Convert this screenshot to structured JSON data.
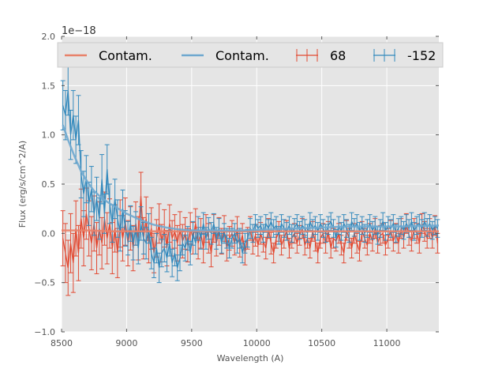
{
  "chart_data": {
    "type": "line",
    "title": "",
    "xlabel": "Wavelength (A)",
    "ylabel": "Flux (erg/s/cm^2/A)",
    "offset_label": "1e−18",
    "xlim": [
      8500,
      11400
    ],
    "ylim": [
      -1.0,
      2.0
    ],
    "xticks": [
      8500,
      9000,
      9500,
      10000,
      10500,
      11000
    ],
    "yticks": [
      -1.0,
      -0.5,
      0.0,
      0.5,
      1.0,
      1.5,
      2.0
    ],
    "ytick_labels": [
      "−1.0",
      "−0.5",
      "0.0",
      "0.5",
      "1.0",
      "1.5",
      "2.0"
    ],
    "grid": true,
    "legend": {
      "placement": "top",
      "entries": [
        {
          "label": "Contam.",
          "kind": "line",
          "color": "#e8826a"
        },
        {
          "label": "Contam.",
          "kind": "line",
          "color": "#6fa8cf"
        },
        {
          "label": "68",
          "kind": "errorbar",
          "color": "#e24a33"
        },
        {
          "label": "-152",
          "kind": "errorbar",
          "color": "#348abd"
        }
      ]
    },
    "series": [
      {
        "name": "Contam.",
        "kind": "line",
        "color": "#e8826a",
        "x": [
          8500,
          8700,
          8900,
          9100,
          9300,
          9500,
          9700,
          9900,
          10100,
          10300,
          10500,
          10700,
          10900,
          11100,
          11400
        ],
        "y": [
          0.03,
          0.03,
          0.02,
          0.02,
          0.02,
          0.02,
          0.02,
          0.02,
          0.02,
          0.02,
          0.02,
          0.02,
          0.02,
          0.02,
          0.02
        ]
      },
      {
        "name": "Contam.",
        "kind": "line",
        "color": "#6fa8cf",
        "x": [
          8510,
          8550,
          8600,
          8650,
          8700,
          8750,
          8800,
          8850,
          8900,
          8950,
          9000,
          9100,
          9200,
          9300,
          9400,
          9500,
          9700,
          9900,
          10100,
          10300,
          10500,
          10700,
          10900,
          11100,
          11400
        ],
        "y": [
          1.1,
          0.95,
          0.78,
          0.63,
          0.52,
          0.43,
          0.37,
          0.32,
          0.28,
          0.24,
          0.2,
          0.14,
          0.09,
          0.06,
          0.04,
          0.03,
          0.03,
          0.03,
          0.04,
          0.05,
          0.06,
          0.07,
          0.07,
          0.07,
          0.08
        ]
      },
      {
        "name": "68",
        "kind": "errorbar",
        "color": "#e24a33",
        "x": [
          8510,
          8530,
          8550,
          8570,
          8590,
          8610,
          8630,
          8650,
          8670,
          8690,
          8710,
          8730,
          8750,
          8770,
          8790,
          8810,
          8830,
          8850,
          8870,
          8890,
          8910,
          8930,
          8950,
          8970,
          8990,
          9010,
          9030,
          9050,
          9070,
          9090,
          9110,
          9130,
          9150,
          9170,
          9190,
          9210,
          9230,
          9250,
          9270,
          9290,
          9310,
          9330,
          9350,
          9370,
          9390,
          9410,
          9430,
          9450,
          9470,
          9490,
          9510,
          9530,
          9550,
          9570,
          9590,
          9610,
          9630,
          9650,
          9670,
          9690,
          9710,
          9730,
          9750,
          9770,
          9790,
          9810,
          9830,
          9850,
          9870,
          9890,
          9910,
          9930,
          9950,
          9970,
          9990,
          10010,
          10030,
          10050,
          10070,
          10090,
          10110,
          10130,
          10150,
          10170,
          10190,
          10210,
          10230,
          10250,
          10270,
          10290,
          10310,
          10330,
          10350,
          10370,
          10390,
          10410,
          10430,
          10450,
          10470,
          10490,
          10510,
          10530,
          10550,
          10570,
          10590,
          10610,
          10630,
          10650,
          10670,
          10690,
          10710,
          10730,
          10750,
          10770,
          10790,
          10810,
          10830,
          10850,
          10870,
          10890,
          10910,
          10930,
          10950,
          10970,
          10990,
          11010,
          11030,
          11050,
          11070,
          11090,
          11110,
          11130,
          11150,
          11170,
          11190,
          11210,
          11230,
          11250,
          11270,
          11290,
          11310,
          11330,
          11350,
          11370,
          11390
        ],
        "y": [
          -0.05,
          -0.2,
          -0.35,
          -0.1,
          -0.3,
          0.05,
          -0.2,
          0.15,
          -0.05,
          0.2,
          0.05,
          -0.1,
          0.1,
          -0.15,
          0.05,
          -0.1,
          0.15,
          -0.05,
          0.1,
          -0.15,
          0.05,
          -0.2,
          0.1,
          -0.05,
          0.12,
          -0.1,
          0.05,
          -0.15,
          0.1,
          -0.05,
          0.38,
          -0.05,
          0.15,
          -0.1,
          0.05,
          -0.2,
          -0.05,
          0.1,
          -0.1,
          0.05,
          -0.15,
          0.1,
          -0.05,
          0.02,
          -0.1,
          0.05,
          -0.08,
          0.0,
          -0.12,
          0.05,
          -0.05,
          0.1,
          -0.1,
          0.0,
          -0.15,
          0.05,
          -0.05,
          -0.2,
          0.05,
          -0.1,
          0.02,
          -0.08,
          0.05,
          -0.15,
          -0.05,
          0.0,
          -0.1,
          0.05,
          -0.12,
          -0.02,
          -0.2,
          -0.05,
          0.05,
          -0.1,
          -0.02,
          -0.12,
          0.0,
          -0.08,
          -0.15,
          0.05,
          -0.1,
          -0.2,
          -0.05,
          0.02,
          -0.12,
          -0.05,
          0.03,
          -0.15,
          -0.05,
          0.0,
          -0.1,
          -0.02,
          0.05,
          -0.12,
          -0.05,
          -0.15,
          0.02,
          -0.08,
          -0.2,
          -0.05,
          0.0,
          -0.1,
          0.02,
          -0.15,
          -0.05,
          -0.08,
          0.0,
          -0.12,
          -0.2,
          0.03,
          -0.05,
          -0.15,
          0.0,
          -0.1,
          -0.18,
          0.02,
          -0.05,
          -0.12,
          0.0,
          -0.08,
          0.05,
          -0.1,
          -0.02,
          0.0,
          -0.12,
          -0.05,
          0.03,
          -0.08,
          0.0,
          -0.1,
          0.05,
          -0.05,
          0.1,
          -0.02,
          -0.08,
          0.05,
          0.0,
          -0.1,
          0.1,
          0.02,
          -0.05,
          0.05,
          -0.05,
          0.08,
          -0.1
        ],
        "err": [
          0.28,
          0.3,
          0.28,
          0.3,
          0.3,
          0.28,
          0.28,
          0.3,
          0.28,
          0.26,
          0.28,
          0.27,
          0.28,
          0.26,
          0.27,
          0.26,
          0.27,
          0.26,
          0.25,
          0.26,
          0.24,
          0.25,
          0.24,
          0.23,
          0.24,
          0.23,
          0.22,
          0.23,
          0.22,
          0.22,
          0.24,
          0.21,
          0.22,
          0.2,
          0.21,
          0.2,
          0.19,
          0.2,
          0.19,
          0.19,
          0.18,
          0.19,
          0.18,
          0.17,
          0.18,
          0.17,
          0.17,
          0.16,
          0.17,
          0.16,
          0.16,
          0.15,
          0.16,
          0.15,
          0.15,
          0.14,
          0.15,
          0.14,
          0.14,
          0.13,
          0.14,
          0.13,
          0.13,
          0.13,
          0.12,
          0.13,
          0.12,
          0.12,
          0.12,
          0.12,
          0.12,
          0.11,
          0.12,
          0.11,
          0.11,
          0.11,
          0.11,
          0.11,
          0.11,
          0.1,
          0.11,
          0.1,
          0.1,
          0.1,
          0.1,
          0.1,
          0.1,
          0.1,
          0.1,
          0.1,
          0.1,
          0.1,
          0.1,
          0.1,
          0.1,
          0.1,
          0.1,
          0.1,
          0.1,
          0.1,
          0.1,
          0.1,
          0.1,
          0.1,
          0.1,
          0.1,
          0.1,
          0.1,
          0.1,
          0.1,
          0.1,
          0.1,
          0.1,
          0.1,
          0.1,
          0.1,
          0.1,
          0.1,
          0.1,
          0.1,
          0.1,
          0.1,
          0.1,
          0.1,
          0.1,
          0.1,
          0.1,
          0.1,
          0.1,
          0.1,
          0.1,
          0.1,
          0.1,
          0.1,
          0.1,
          0.1,
          0.1,
          0.1,
          0.1,
          0.1,
          0.1,
          0.1,
          0.1,
          0.1,
          0.1
        ]
      },
      {
        "name": "-152",
        "kind": "errorbar",
        "color": "#348abd",
        "x": [
          8510,
          8530,
          8550,
          8570,
          8590,
          8610,
          8630,
          8650,
          8670,
          8690,
          8710,
          8730,
          8750,
          8770,
          8790,
          8810,
          8830,
          8850,
          8870,
          8890,
          8910,
          8930,
          8950,
          8970,
          8990,
          9010,
          9030,
          9050,
          9070,
          9090,
          9110,
          9130,
          9150,
          9170,
          9190,
          9210,
          9230,
          9250,
          9270,
          9290,
          9310,
          9330,
          9350,
          9370,
          9390,
          9410,
          9430,
          9450,
          9470,
          9490,
          9510,
          9530,
          9550,
          9570,
          9590,
          9610,
          9630,
          9650,
          9670,
          9690,
          9710,
          9730,
          9750,
          9770,
          9790,
          9810,
          9830,
          9850,
          9870,
          9890,
          9910,
          9930,
          9950,
          9970,
          9990,
          10010,
          10030,
          10050,
          10070,
          10090,
          10110,
          10130,
          10150,
          10170,
          10190,
          10210,
          10230,
          10250,
          10270,
          10290,
          10310,
          10330,
          10350,
          10370,
          10390,
          10410,
          10430,
          10450,
          10470,
          10490,
          10510,
          10530,
          10550,
          10570,
          10590,
          10610,
          10630,
          10650,
          10670,
          10690,
          10710,
          10730,
          10750,
          10770,
          10790,
          10810,
          10830,
          10850,
          10870,
          10890,
          10910,
          10930,
          10950,
          10970,
          10990,
          11010,
          11030,
          11050,
          11070,
          11090,
          11110,
          11130,
          11150,
          11170,
          11190,
          11210,
          11230,
          11250,
          11270,
          11290,
          11310,
          11330,
          11350,
          11370,
          11390
        ],
        "y": [
          1.3,
          1.2,
          1.45,
          1.0,
          1.2,
          0.95,
          1.15,
          0.6,
          0.4,
          0.55,
          0.3,
          0.45,
          0.2,
          0.35,
          0.15,
          0.55,
          0.2,
          0.65,
          0.3,
          0.1,
          0.35,
          0.15,
          0.0,
          0.25,
          0.05,
          -0.05,
          0.1,
          -0.1,
          0.05,
          -0.15,
          0.1,
          -0.05,
          -0.1,
          0.05,
          -0.2,
          -0.3,
          -0.15,
          -0.35,
          -0.2,
          -0.15,
          -0.25,
          -0.1,
          -0.3,
          -0.2,
          -0.35,
          -0.25,
          -0.1,
          -0.15,
          -0.05,
          -0.2,
          0.0,
          -0.1,
          0.05,
          -0.05,
          0.1,
          -0.05,
          0.05,
          0.0,
          0.1,
          -0.05,
          0.05,
          -0.1,
          0.0,
          -0.05,
          -0.15,
          -0.05,
          0.0,
          -0.1,
          -0.05,
          -0.2,
          -0.1,
          -0.05,
          0.05,
          0.0,
          0.1,
          0.05,
          0.08,
          0.0,
          0.1,
          0.05,
          0.12,
          0.05,
          0.08,
          -0.02,
          0.1,
          0.05,
          0.02,
          0.08,
          0.0,
          0.06,
          0.1,
          0.03,
          0.08,
          0.05,
          0.0,
          0.12,
          0.05,
          0.08,
          0.02,
          0.1,
          0.05,
          0.0,
          0.08,
          0.12,
          0.05,
          -0.05,
          0.08,
          0.02,
          0.1,
          0.05,
          0.0,
          0.12,
          0.06,
          0.1,
          0.02,
          0.08,
          0.0,
          0.05,
          0.1,
          0.03,
          0.08,
          -0.02,
          0.05,
          0.12,
          0.02,
          0.08,
          0.05,
          0.1,
          0.0,
          0.06,
          0.08,
          0.03,
          0.1,
          0.05,
          0.12,
          0.02,
          0.08,
          0.1,
          0.05,
          0.12,
          0.06,
          0.1,
          0.03,
          0.08,
          0.05
        ],
        "err": [
          0.25,
          0.25,
          0.25,
          0.25,
          0.25,
          0.24,
          0.25,
          0.24,
          0.23,
          0.24,
          0.22,
          0.23,
          0.22,
          0.22,
          0.21,
          0.25,
          0.2,
          0.25,
          0.2,
          0.19,
          0.2,
          0.19,
          0.18,
          0.19,
          0.18,
          0.17,
          0.18,
          0.17,
          0.17,
          0.16,
          0.17,
          0.16,
          0.16,
          0.15,
          0.16,
          0.15,
          0.15,
          0.15,
          0.14,
          0.14,
          0.14,
          0.13,
          0.14,
          0.13,
          0.13,
          0.13,
          0.12,
          0.13,
          0.12,
          0.12,
          0.12,
          0.11,
          0.12,
          0.11,
          0.11,
          0.11,
          0.11,
          0.11,
          0.1,
          0.11,
          0.1,
          0.1,
          0.1,
          0.1,
          0.1,
          0.1,
          0.1,
          0.1,
          0.1,
          0.1,
          0.1,
          0.09,
          0.1,
          0.09,
          0.09,
          0.09,
          0.09,
          0.09,
          0.09,
          0.09,
          0.09,
          0.09,
          0.09,
          0.09,
          0.09,
          0.09,
          0.09,
          0.09,
          0.09,
          0.09,
          0.09,
          0.09,
          0.09,
          0.09,
          0.09,
          0.09,
          0.09,
          0.09,
          0.09,
          0.09,
          0.09,
          0.09,
          0.09,
          0.09,
          0.09,
          0.09,
          0.09,
          0.09,
          0.09,
          0.09,
          0.09,
          0.09,
          0.09,
          0.09,
          0.09,
          0.09,
          0.09,
          0.09,
          0.09,
          0.09,
          0.09,
          0.09,
          0.09,
          0.09,
          0.09,
          0.09,
          0.09,
          0.09,
          0.09,
          0.09,
          0.09,
          0.09,
          0.09,
          0.09,
          0.09,
          0.09,
          0.09,
          0.09,
          0.09,
          0.09,
          0.09,
          0.09,
          0.09,
          0.09,
          0.09
        ]
      }
    ]
  }
}
